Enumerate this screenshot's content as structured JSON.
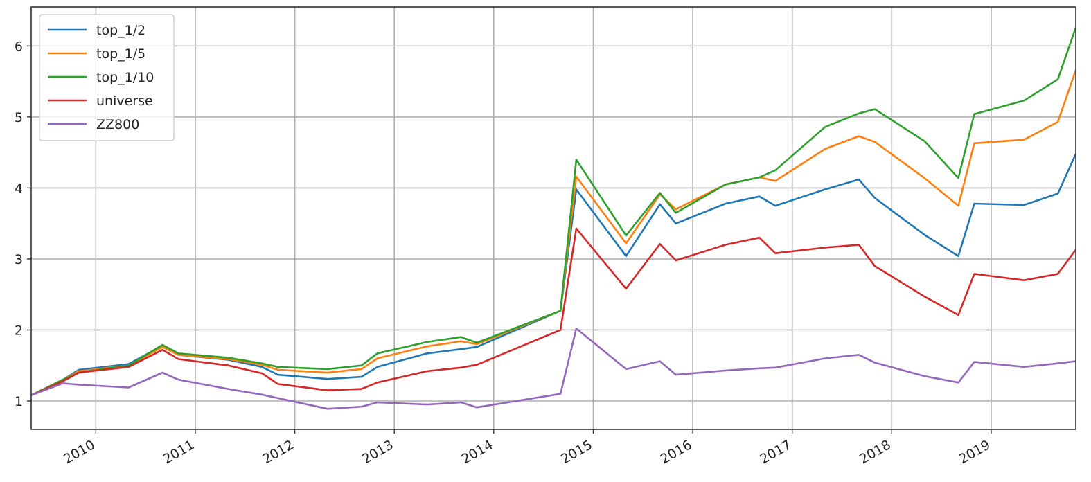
{
  "chart_data": {
    "type": "line",
    "title": "",
    "xlabel": "",
    "ylabel": "",
    "xlim": [
      2009.35,
      2019.85
    ],
    "ylim": [
      0.6,
      6.55
    ],
    "grid": true,
    "legend_position": "top-left",
    "x_ticks": [
      2010,
      2011,
      2012,
      2013,
      2014,
      2015,
      2016,
      2017,
      2018,
      2019
    ],
    "x_tick_labels": [
      "2010",
      "2011",
      "2012",
      "2013",
      "2014",
      "2015",
      "2016",
      "2017",
      "2018",
      "2019"
    ],
    "y_ticks": [
      1,
      2,
      3,
      4,
      5,
      6
    ],
    "y_tick_labels": [
      "1",
      "2",
      "3",
      "4",
      "5",
      "6"
    ],
    "x": [
      2009.35,
      2009.67,
      2009.83,
      2010.33,
      2010.67,
      2010.83,
      2011.33,
      2011.67,
      2011.83,
      2012.33,
      2012.67,
      2012.83,
      2013.33,
      2013.67,
      2013.83,
      2014.67,
      2014.83,
      2015.33,
      2015.67,
      2015.83,
      2016.33,
      2016.67,
      2016.83,
      2017.33,
      2017.67,
      2017.83,
      2018.33,
      2018.67,
      2018.83,
      2019.33,
      2019.67,
      2019.85
    ],
    "series": [
      {
        "name": "top_1/2",
        "color": "#1f77b4",
        "values": [
          1.08,
          1.3,
          1.44,
          1.52,
          1.78,
          1.65,
          1.58,
          1.48,
          1.37,
          1.31,
          1.34,
          1.48,
          1.67,
          1.73,
          1.76,
          2.27,
          3.98,
          3.04,
          3.77,
          3.5,
          3.78,
          3.88,
          3.75,
          3.98,
          4.12,
          3.86,
          3.34,
          3.04,
          3.78,
          3.76,
          3.92,
          4.48
        ]
      },
      {
        "name": "top_1/5",
        "color": "#ff7f0e",
        "values": [
          1.08,
          1.3,
          1.42,
          1.5,
          1.76,
          1.65,
          1.59,
          1.51,
          1.44,
          1.4,
          1.45,
          1.6,
          1.77,
          1.84,
          1.8,
          2.27,
          4.16,
          3.22,
          3.91,
          3.7,
          4.05,
          4.15,
          4.1,
          4.55,
          4.73,
          4.65,
          4.14,
          3.75,
          4.63,
          4.68,
          4.93,
          5.66
        ]
      },
      {
        "name": "top_1/10",
        "color": "#2ca02c",
        "values": [
          1.08,
          1.3,
          1.4,
          1.5,
          1.79,
          1.67,
          1.61,
          1.53,
          1.48,
          1.45,
          1.5,
          1.67,
          1.83,
          1.9,
          1.82,
          2.27,
          4.4,
          3.33,
          3.93,
          3.65,
          4.05,
          4.15,
          4.25,
          4.86,
          5.05,
          5.11,
          4.66,
          4.14,
          5.04,
          5.23,
          5.53,
          6.26
        ]
      },
      {
        "name": "universe",
        "color": "#d62728",
        "values": [
          1.08,
          1.28,
          1.4,
          1.48,
          1.72,
          1.59,
          1.5,
          1.39,
          1.24,
          1.15,
          1.17,
          1.26,
          1.42,
          1.47,
          1.51,
          2.0,
          3.43,
          2.58,
          3.21,
          2.98,
          3.2,
          3.3,
          3.08,
          3.16,
          3.2,
          2.9,
          2.47,
          2.21,
          2.79,
          2.7,
          2.79,
          3.13
        ]
      },
      {
        "name": "ZZ800",
        "color": "#9467bd",
        "values": [
          1.08,
          1.25,
          1.23,
          1.19,
          1.4,
          1.3,
          1.17,
          1.09,
          1.04,
          0.89,
          0.92,
          0.98,
          0.95,
          0.98,
          0.91,
          1.1,
          2.02,
          1.45,
          1.56,
          1.37,
          1.43,
          1.46,
          1.47,
          1.6,
          1.65,
          1.54,
          1.35,
          1.26,
          1.55,
          1.48,
          1.53,
          1.56
        ]
      }
    ]
  }
}
